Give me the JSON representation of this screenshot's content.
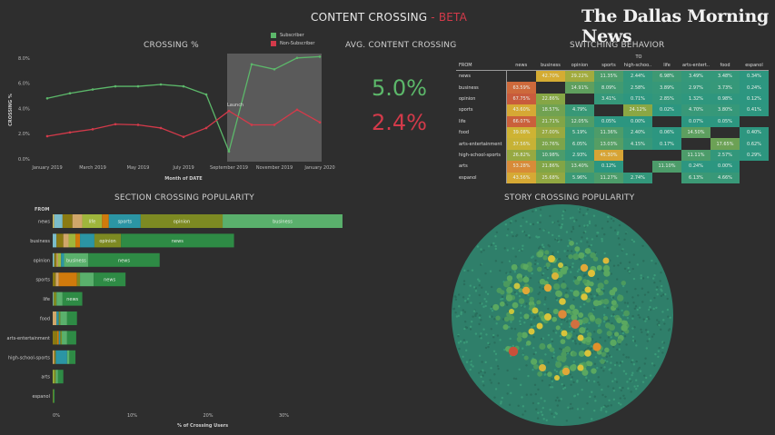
{
  "header": {
    "title": "CONTENT CROSSING",
    "separator": " - ",
    "beta": "BETA",
    "logo": "The Dallas Morning News"
  },
  "colors": {
    "subscriber": "#5cb86a",
    "non_subscriber": "#d33a4a",
    "background": "#2e2e2e",
    "launch_region": "#5a5a5a"
  },
  "crossing_chart": {
    "title": "CROSSING %",
    "legend": [
      {
        "label": "Subscriber",
        "color": "#5cb86a"
      },
      {
        "label": "Non-Subscriber",
        "color": "#d33a4a"
      }
    ],
    "annotation": "Launch"
  },
  "avg_crossing": {
    "title": "AVG. CONTENT CROSSING",
    "subscriber_value": "5.0%",
    "non_subscriber_value": "2.4%"
  },
  "switching": {
    "title": "SWITCHING BEHAVIOR",
    "to_label": "TO",
    "from_label": "FROM",
    "columns": [
      "news",
      "business",
      "opinion",
      "sports",
      "high-schoo..",
      "life",
      "arts-entert..",
      "food",
      "espanol"
    ],
    "rows": [
      {
        "label": "news",
        "values": [
          "",
          "42.70%",
          "29.22%",
          "11.35%",
          "2.44%",
          "6.98%",
          "3.49%",
          "3.48%",
          "0.34%"
        ]
      },
      {
        "label": "business",
        "values": [
          "63.59%",
          "",
          "14.91%",
          "8.09%",
          "2.58%",
          "3.89%",
          "2.97%",
          "3.73%",
          "0.24%"
        ]
      },
      {
        "label": "opinion",
        "values": [
          "67.75%",
          "22.86%",
          "",
          "3.41%",
          "0.71%",
          "2.85%",
          "1.32%",
          "0.98%",
          "0.12%"
        ]
      },
      {
        "label": "sports",
        "values": [
          "43.60%",
          "18.57%",
          "4.79%",
          "",
          "24.12%",
          "0.02%",
          "4.70%",
          "3.80%",
          "0.41%"
        ]
      },
      {
        "label": "life",
        "values": [
          "66.07%",
          "21.71%",
          "12.05%",
          "0.05%",
          "0.00%",
          "",
          "0.07%",
          "0.05%",
          ""
        ]
      },
      {
        "label": "food",
        "values": [
          "39.08%",
          "27.00%",
          "5.19%",
          "11.36%",
          "2.40%",
          "0.06%",
          "14.50%",
          "",
          "0.40%"
        ]
      },
      {
        "label": "arts-entertainment",
        "values": [
          "37.56%",
          "20.76%",
          "6.05%",
          "13.03%",
          "4.15%",
          "0.17%",
          "",
          "17.65%",
          "0.62%"
        ]
      },
      {
        "label": "high-school-sports",
        "values": [
          "26.82%",
          "10.98%",
          "2.93%",
          "45.30%",
          "",
          "",
          "11.11%",
          "2.57%",
          "0.29%"
        ]
      },
      {
        "label": "arts",
        "values": [
          "53.28%",
          "21.86%",
          "13.40%",
          "0.12%",
          "",
          "11.10%",
          "0.24%",
          "0.00%",
          ""
        ]
      },
      {
        "label": "espanol",
        "values": [
          "43.56%",
          "25.68%",
          "5.96%",
          "11.27%",
          "2.74%",
          "",
          "6.13%",
          "4.66%",
          ""
        ]
      }
    ]
  },
  "section_popularity": {
    "title": "SECTION CROSSING POPULARITY",
    "from_label": "FROM"
  },
  "story_popularity": {
    "title": "STORY CROSSING POPULARITY"
  },
  "chart_data": [
    {
      "type": "line",
      "title": "CROSSING %",
      "xlabel": "Month of DATE",
      "ylabel": "CROSSING %",
      "ylim": [
        0,
        8.5
      ],
      "yticks": [
        "0.0%",
        "2.0%",
        "4.0%",
        "6.0%",
        "8.0%"
      ],
      "ytick_values": [
        0,
        2,
        4,
        6,
        8
      ],
      "x": [
        "January 2019",
        "February 2019",
        "March 2019",
        "April 2019",
        "May 2019",
        "June 2019",
        "July 2019",
        "August 2019",
        "September 2019",
        "October 2019",
        "November 2019",
        "December 2019",
        "January 2020"
      ],
      "xtick_labels": [
        "January 2019",
        "March 2019",
        "May 2019",
        "July 2019",
        "September 2019",
        "November 2019",
        "January 2020"
      ],
      "xtick_index": [
        0,
        2,
        4,
        6,
        8,
        10,
        12
      ],
      "highlight_range": [
        8,
        12
      ],
      "annotation": {
        "text": "Launch",
        "index": 8
      },
      "series": [
        {
          "name": "Subscriber",
          "color": "#5cb86a",
          "values": [
            4.8,
            5.2,
            5.5,
            5.75,
            5.75,
            5.9,
            5.75,
            5.1,
            0.6,
            7.5,
            7.1,
            8.0,
            8.1
          ]
        },
        {
          "name": "Non-Subscriber",
          "color": "#d33a4a",
          "values": [
            1.8,
            2.1,
            2.35,
            2.75,
            2.7,
            2.45,
            1.75,
            2.45,
            3.8,
            2.7,
            2.7,
            3.9,
            2.9
          ]
        }
      ]
    },
    {
      "type": "bar",
      "stacked": true,
      "orientation": "horizontal",
      "title": "SECTION CROSSING POPULARITY",
      "xlabel": "% of Crossing Users",
      "ylabel": "FROM",
      "xlim": [
        0,
        38
      ],
      "xticks": [
        "0%",
        "10%",
        "20%",
        "30%"
      ],
      "xtick_values": [
        0,
        10,
        20,
        30
      ],
      "categories": [
        "news",
        "business",
        "opinion",
        "sports",
        "life",
        "food",
        "arts-entertainment",
        "high-school-sports",
        "arts",
        "espanol"
      ],
      "bars": [
        {
          "category": "news",
          "segments": [
            {
              "section": "espanol",
              "value": 0.2,
              "color": "#c9b458",
              "label": ""
            },
            {
              "section": "arts",
              "value": 1.1,
              "color": "#7bbcc9",
              "label": ""
            },
            {
              "section": "arts-entertainment",
              "value": 1.3,
              "color": "#8a7a12",
              "label": ""
            },
            {
              "section": "food",
              "value": 1.3,
              "color": "#d0a66a",
              "label": ""
            },
            {
              "section": "life",
              "value": 2.6,
              "color": "#9fb63c",
              "label": "life"
            },
            {
              "section": "high-school-sports",
              "value": 0.9,
              "color": "#d07a0c",
              "label": ""
            },
            {
              "section": "sports",
              "value": 4.2,
              "color": "#2b95a4",
              "label": "sports"
            },
            {
              "section": "opinion",
              "value": 10.8,
              "color": "#7d8a22",
              "label": "opinion"
            },
            {
              "section": "business",
              "value": 15.8,
              "color": "#5ab06c",
              "label": "business"
            }
          ]
        },
        {
          "category": "business",
          "segments": [
            {
              "section": "arts",
              "value": 0.5,
              "color": "#7bbcc9",
              "label": ""
            },
            {
              "section": "arts-entertainment",
              "value": 0.9,
              "color": "#8a7a12",
              "label": ""
            },
            {
              "section": "food",
              "value": 0.7,
              "color": "#d0a66a",
              "label": ""
            },
            {
              "section": "life",
              "value": 0.9,
              "color": "#9fb63c",
              "label": ""
            },
            {
              "section": "high-school-sports",
              "value": 0.6,
              "color": "#d07a0c",
              "label": ""
            },
            {
              "section": "sports",
              "value": 1.9,
              "color": "#2b95a4",
              "label": ""
            },
            {
              "section": "opinion",
              "value": 3.5,
              "color": "#7d8a22",
              "label": "opinion"
            },
            {
              "section": "news",
              "value": 14.9,
              "color": "#2e8b45",
              "label": "news"
            }
          ]
        },
        {
          "category": "opinion",
          "segments": [
            {
              "section": "arts",
              "value": 0.2,
              "color": "#7bbcc9",
              "label": ""
            },
            {
              "section": "arts-entertainment",
              "value": 0.3,
              "color": "#8a7a12",
              "label": ""
            },
            {
              "section": "food",
              "value": 0.2,
              "color": "#d0a66a",
              "label": ""
            },
            {
              "section": "life",
              "value": 0.4,
              "color": "#9fb63c",
              "label": ""
            },
            {
              "section": "sports",
              "value": 0.4,
              "color": "#2b95a4",
              "label": ""
            },
            {
              "section": "business",
              "value": 3.2,
              "color": "#5ab06c",
              "label": "business"
            },
            {
              "section": "news",
              "value": 9.4,
              "color": "#2e8b45",
              "label": "news"
            }
          ]
        },
        {
          "category": "sports",
          "segments": [
            {
              "section": "arts-entertainment",
              "value": 0.4,
              "color": "#8a7a12",
              "label": ""
            },
            {
              "section": "food",
              "value": 0.4,
              "color": "#d0a66a",
              "label": ""
            },
            {
              "section": "high-school-sports",
              "value": 2.4,
              "color": "#d07a0c",
              "label": ""
            },
            {
              "section": "opinion",
              "value": 0.4,
              "color": "#7d8a22",
              "label": ""
            },
            {
              "section": "business",
              "value": 1.8,
              "color": "#5ab06c",
              "label": ""
            },
            {
              "section": "news",
              "value": 4.2,
              "color": "#2e8b45",
              "label": "news"
            }
          ]
        },
        {
          "category": "life",
          "segments": [
            {
              "section": "arts",
              "value": 0.1,
              "color": "#7bbcc9",
              "label": ""
            },
            {
              "section": "opinion",
              "value": 0.4,
              "color": "#7d8a22",
              "label": ""
            },
            {
              "section": "business",
              "value": 0.8,
              "color": "#5ab06c",
              "label": ""
            },
            {
              "section": "news",
              "value": 2.6,
              "color": "#2e8b45",
              "label": "news"
            }
          ]
        },
        {
          "category": "food",
          "segments": [
            {
              "section": "arts-entertainment",
              "value": 0.5,
              "color": "#d0a66a",
              "label": ""
            },
            {
              "section": "sports",
              "value": 0.3,
              "color": "#2b95a4",
              "label": ""
            },
            {
              "section": "opinion",
              "value": 0.2,
              "color": "#7d8a22",
              "label": ""
            },
            {
              "section": "business",
              "value": 0.9,
              "color": "#5ab06c",
              "label": ""
            },
            {
              "section": "news",
              "value": 1.3,
              "color": "#2e8b45",
              "label": ""
            }
          ]
        },
        {
          "category": "arts-entertainment",
          "segments": [
            {
              "section": "food",
              "value": 0.6,
              "color": "#8a7a12",
              "label": ""
            },
            {
              "section": "high-school-sports",
              "value": 0.2,
              "color": "#d07a0c",
              "label": ""
            },
            {
              "section": "sports",
              "value": 0.2,
              "color": "#2b95a4",
              "label": ""
            },
            {
              "section": "opinion",
              "value": 0.2,
              "color": "#7d8a22",
              "label": ""
            },
            {
              "section": "business",
              "value": 0.7,
              "color": "#5ab06c",
              "label": ""
            },
            {
              "section": "news",
              "value": 1.2,
              "color": "#2e8b45",
              "label": ""
            }
          ]
        },
        {
          "category": "high-school-sports",
          "segments": [
            {
              "section": "food",
              "value": 0.2,
              "color": "#d0a66a",
              "label": ""
            },
            {
              "section": "arts-entertainment",
              "value": 0.2,
              "color": "#8a7a12",
              "label": ""
            },
            {
              "section": "sports",
              "value": 1.5,
              "color": "#2b95a4",
              "label": ""
            },
            {
              "section": "business",
              "value": 0.3,
              "color": "#5ab06c",
              "label": ""
            },
            {
              "section": "news",
              "value": 0.8,
              "color": "#2e8b45",
              "label": ""
            }
          ]
        },
        {
          "category": "arts",
          "segments": [
            {
              "section": "life",
              "value": 0.2,
              "color": "#9fb63c",
              "label": ""
            },
            {
              "section": "opinion",
              "value": 0.2,
              "color": "#7d8a22",
              "label": ""
            },
            {
              "section": "business",
              "value": 0.3,
              "color": "#5ab06c",
              "label": ""
            },
            {
              "section": "news",
              "value": 0.7,
              "color": "#2e8b45",
              "label": ""
            }
          ]
        },
        {
          "category": "espanol",
          "segments": [
            {
              "section": "business",
              "value": 0.1,
              "color": "#7d8a22",
              "label": ""
            },
            {
              "section": "news",
              "value": 0.15,
              "color": "#2e8b45",
              "label": ""
            }
          ]
        }
      ]
    }
  ]
}
